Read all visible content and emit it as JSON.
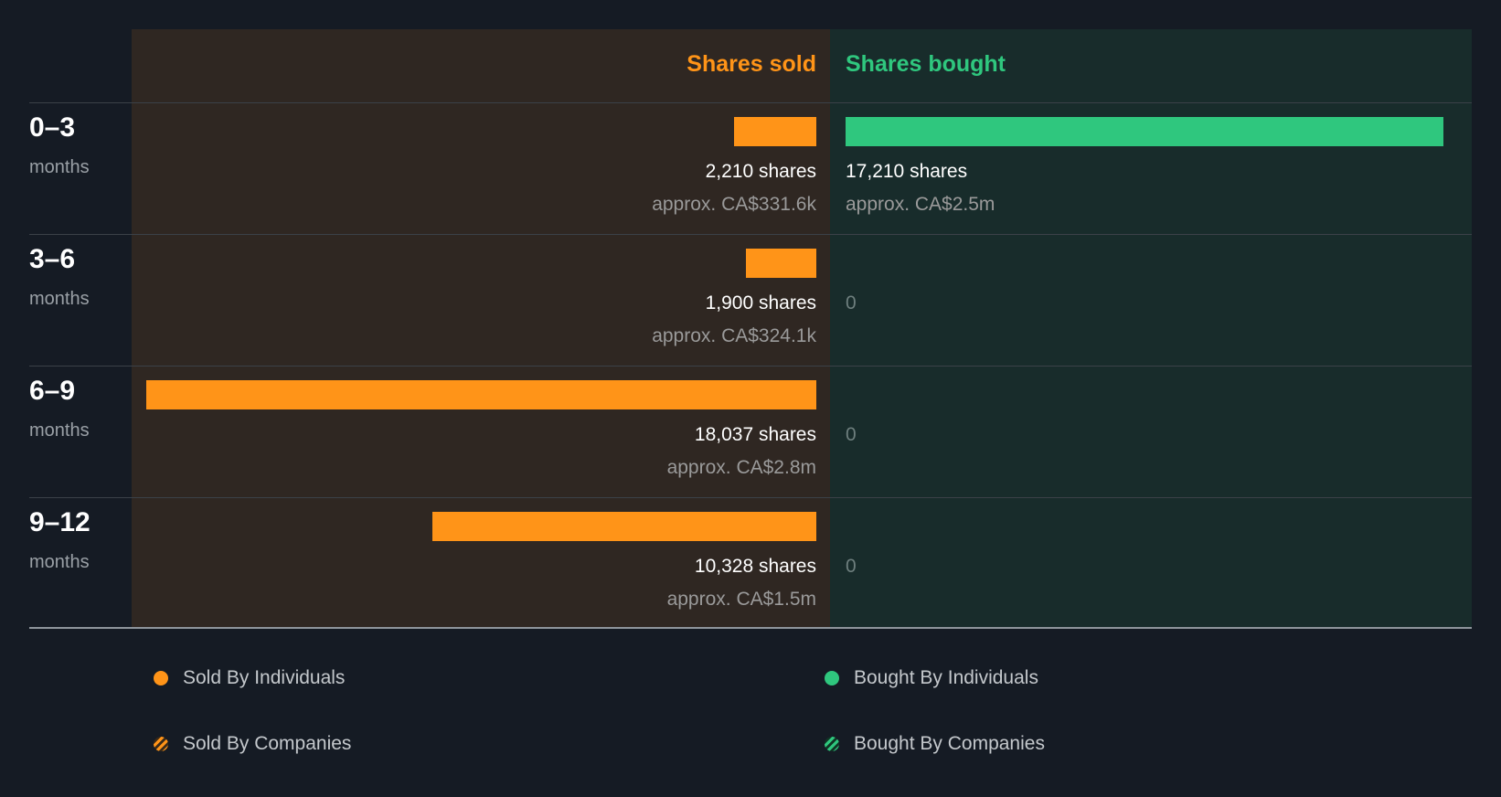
{
  "colors": {
    "sold": "#ff9418",
    "bought": "#2fc77e",
    "sold_stripe_dark": "#3a2a18",
    "bought_stripe_dark": "#103525"
  },
  "chart_data": {
    "type": "bar",
    "title": "",
    "column_headers": {
      "sold": "Shares sold",
      "bought": "Shares bought"
    },
    "categories": [
      {
        "range": "0–3",
        "unit": "months"
      },
      {
        "range": "3–6",
        "unit": "months"
      },
      {
        "range": "6–9",
        "unit": "months"
      },
      {
        "range": "9–12",
        "unit": "months"
      }
    ],
    "series": [
      {
        "name": "Shares sold",
        "values": [
          2210,
          1900,
          18037,
          10328
        ],
        "shares_labels": [
          "2,210 shares",
          "1,900 shares",
          "18,037 shares",
          "10,328 shares"
        ],
        "value_labels": [
          "approx. CA$331.6k",
          "approx. CA$324.1k",
          "approx. CA$2.8m",
          "approx. CA$1.5m"
        ]
      },
      {
        "name": "Shares bought",
        "values": [
          17210,
          0,
          0,
          0
        ],
        "shares_labels": [
          "17,210 shares",
          "0",
          "0",
          "0"
        ],
        "value_labels": [
          "approx. CA$2.5m",
          "",
          "",
          ""
        ]
      }
    ],
    "max_value": 18037,
    "legend": [
      {
        "label": "Sold By Individuals",
        "marker": "solid",
        "color_key": "sold"
      },
      {
        "label": "Bought By Individuals",
        "marker": "solid",
        "color_key": "bought"
      },
      {
        "label": "Sold By Companies",
        "marker": "striped",
        "color_key": "sold"
      },
      {
        "label": "Bought By Companies",
        "marker": "striped",
        "color_key": "bought"
      }
    ]
  }
}
